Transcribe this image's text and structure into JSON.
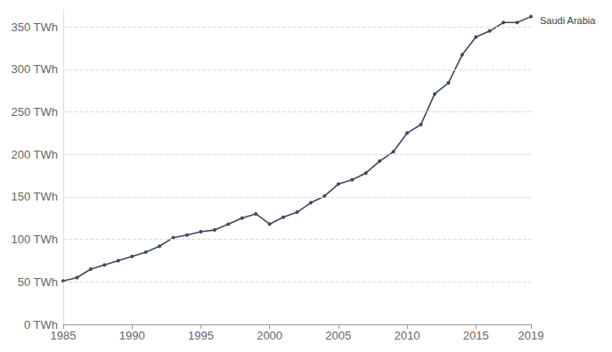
{
  "chart_data": {
    "type": "line",
    "x": [
      1985,
      1986,
      1987,
      1988,
      1989,
      1990,
      1991,
      1992,
      1993,
      1994,
      1995,
      1996,
      1997,
      1998,
      1999,
      2000,
      2001,
      2002,
      2003,
      2004,
      2005,
      2006,
      2007,
      2008,
      2009,
      2010,
      2011,
      2012,
      2013,
      2014,
      2015,
      2016,
      2017,
      2018,
      2019
    ],
    "series": [
      {
        "name": "Saudi Arabia",
        "color": "#3d4a5f",
        "marker": "circle",
        "line_style": "solid",
        "values": [
          51,
          55,
          65,
          70,
          75,
          80,
          85,
          92,
          102,
          105,
          109,
          111,
          118,
          125,
          130,
          118,
          126,
          132,
          143,
          151,
          165,
          170,
          178,
          192,
          203,
          225,
          235,
          271,
          284,
          317,
          338,
          345,
          355,
          355,
          362
        ]
      }
    ],
    "xlim": [
      1985,
      2019
    ],
    "xticks": [
      1985,
      1990,
      1995,
      2000,
      2005,
      2010,
      2015,
      2019
    ],
    "ylim": [
      0,
      370
    ],
    "yticks": [
      {
        "value": 0,
        "label": "0 TWh"
      },
      {
        "value": 50,
        "label": "50 TWh"
      },
      {
        "value": 100,
        "label": "100 TWh"
      },
      {
        "value": 150,
        "label": "150 TWh"
      },
      {
        "value": 200,
        "label": "200 TWh"
      },
      {
        "value": 250,
        "label": "250 TWh"
      },
      {
        "value": 300,
        "label": "300 TWh"
      },
      {
        "value": 350,
        "label": "350 TWh"
      }
    ],
    "grid": true
  }
}
